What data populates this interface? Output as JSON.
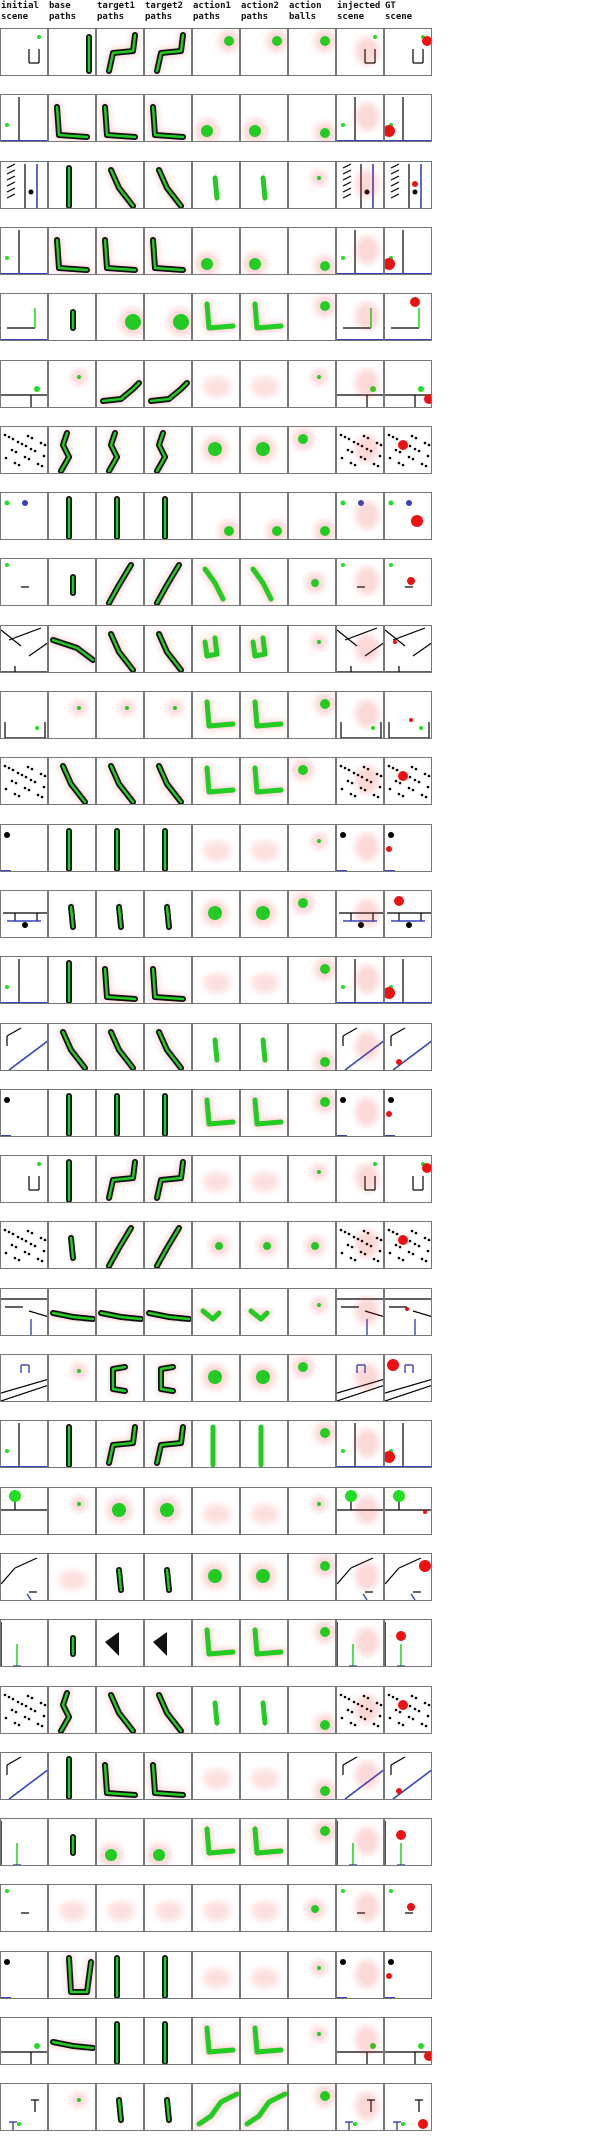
{
  "figure": {
    "columns": [
      {
        "id": "initial_scene",
        "line1": "initial",
        "line2": "scene"
      },
      {
        "id": "base_paths",
        "line1": "base",
        "line2": "paths"
      },
      {
        "id": "target1_paths",
        "line1": "target1",
        "line2": "paths"
      },
      {
        "id": "target2_paths",
        "line1": "target2",
        "line2": "paths"
      },
      {
        "id": "action1_paths",
        "line1": "action1",
        "line2": "paths"
      },
      {
        "id": "action2_paths",
        "line1": "action2",
        "line2": "paths"
      },
      {
        "id": "action_balls",
        "line1": "action",
        "line2": "balls"
      },
      {
        "id": "injected_scene",
        "line1": "injected",
        "line2": "scene"
      },
      {
        "id": "gt_scene",
        "line1": "GT",
        "line2": "scene"
      }
    ],
    "row_count": 32,
    "colors": {
      "path_green": "#22cc22",
      "path_dark": "#111111",
      "heat_red": "#ee3333",
      "wall_blue": "#3344bb",
      "ball_red": "#ee1111",
      "ball_green": "#22dd22",
      "static_black": "#000000",
      "panel_border": "#777777"
    },
    "rows": [
      {
        "scene": "cup-right",
        "base": "vbar",
        "t1": "zig",
        "t2": "zig",
        "a1": "ball-tr",
        "ab": "ball-tr"
      },
      {
        "scene": "wall-left",
        "base": "L-low",
        "t1": "L-low",
        "t2": "L-low",
        "a1": "blob-low",
        "ab": "ball-low"
      },
      {
        "scene": "ramp-stairs",
        "base": "vbar-dark",
        "t1": "diag-down",
        "t2": "diag-down",
        "a1": "short-v",
        "ab": "dot"
      },
      {
        "scene": "wall-left",
        "base": "L-low",
        "t1": "L-low",
        "t2": "L-low",
        "a1": "blob-low",
        "ab": "ball-low"
      },
      {
        "scene": "corner-L",
        "base": "thin-v",
        "t1": "blob-right",
        "t2": "blob-right",
        "a1": "L-shape",
        "ab": "ball-tr"
      },
      {
        "scene": "shelf-ball",
        "base": "dot",
        "t1": "curve-right",
        "t2": "curve-right",
        "a1": "faint",
        "ab": "dot"
      },
      {
        "scene": "dots",
        "base": "wiggle",
        "t1": "wiggle",
        "t2": "wiggle",
        "a1": "blob-mid",
        "ab": "ball-tl"
      },
      {
        "scene": "two-balls",
        "base": "vbar-dark",
        "t1": "vbar-dark",
        "t2": "vbar-dark",
        "a1": "ball-low",
        "ab": "ball-low"
      },
      {
        "scene": "small-bar",
        "base": "thin-v",
        "t1": "diag-up",
        "t2": "diag-up",
        "a1": "curve-down",
        "ab": "ball-mid"
      },
      {
        "scene": "ramps",
        "base": "diag-long",
        "t1": "diag-down",
        "t2": "diag-down",
        "a1": "hook",
        "ab": "dot"
      },
      {
        "scene": "cup-wide",
        "base": "dot",
        "t1": "dot",
        "t2": "dot",
        "a1": "L-shape",
        "ab": "ball-tr"
      },
      {
        "scene": "dots",
        "base": "diag-down",
        "t1": "diag-down",
        "t2": "diag-down",
        "a1": "L-shape",
        "ab": "ball-tl"
      },
      {
        "scene": "ball-left",
        "base": "vbar-dark",
        "t1": "vbar-dark",
        "t2": "vbar-dark",
        "a1": "faint",
        "ab": "dot"
      },
      {
        "scene": "cart",
        "base": "short-v",
        "t1": "short-v",
        "t2": "short-v",
        "a1": "blob-mid",
        "ab": "ball-tl"
      },
      {
        "scene": "wall-left",
        "base": "vbar-dark",
        "t1": "L-low",
        "t2": "L-low",
        "a1": "faint",
        "ab": "ball-tr"
      },
      {
        "scene": "ramp-blue",
        "base": "diag-down",
        "t1": "diag-down",
        "t2": "diag-down",
        "a1": "short-v",
        "ab": "ball-low"
      },
      {
        "scene": "ball-left",
        "base": "vbar-dark",
        "t1": "vbar-dark",
        "t2": "vbar-dark",
        "a1": "L-shape",
        "ab": "ball-tr"
      },
      {
        "scene": "cup-right",
        "base": "vbar-dark",
        "t1": "zig",
        "t2": "zig",
        "a1": "faint",
        "ab": "dot"
      },
      {
        "scene": "dots",
        "base": "short-v",
        "t1": "diag-up",
        "t2": "diag-up",
        "a1": "ball-mid",
        "ab": "ball-mid"
      },
      {
        "scene": "shelf-bar",
        "base": "flat",
        "t1": "flat",
        "t2": "flat",
        "a1": "flat-short",
        "ab": "dot"
      },
      {
        "scene": "arch-ramp",
        "base": "dot",
        "t1": "C-shape",
        "t2": "C-shape",
        "a1": "blob-mid",
        "ab": "ball-tl"
      },
      {
        "scene": "wall-left",
        "base": "vbar-dark",
        "t1": "zig",
        "t2": "zig",
        "a1": "vbar-dark",
        "ab": "ball-tr"
      },
      {
        "scene": "tree",
        "base": "dot",
        "t1": "blob-mid",
        "t2": "blob-mid",
        "a1": "faint",
        "ab": "dot"
      },
      {
        "scene": "funnel",
        "base": "faint",
        "t1": "short-v",
        "t2": "short-v",
        "a1": "blob-mid",
        "ab": "ball-tr"
      },
      {
        "scene": "pole",
        "base": "thin-v",
        "t1": "triangle",
        "t2": "triangle",
        "a1": "L-shape",
        "ab": "ball-tr"
      },
      {
        "scene": "dots",
        "base": "wiggle",
        "t1": "diag-down",
        "t2": "diag-down",
        "a1": "short-v",
        "ab": "ball-low"
      },
      {
        "scene": "ramp-blue",
        "base": "vbar-dark",
        "t1": "L-low",
        "t2": "L-low",
        "a1": "faint",
        "ab": "ball-low"
      },
      {
        "scene": "pole",
        "base": "thin-v",
        "t1": "blob-low",
        "t2": "blob-low",
        "a1": "L-shape",
        "ab": "ball-tr"
      },
      {
        "scene": "small-bar",
        "base": "faint",
        "t1": "faint",
        "t2": "faint",
        "a1": "faint",
        "ab": "ball-mid"
      },
      {
        "scene": "ball-left",
        "base": "J-hook",
        "t1": "vbar-dark",
        "t2": "vbar-dark",
        "a1": "faint",
        "ab": "dot"
      },
      {
        "scene": "shelf-ball",
        "base": "flat",
        "t1": "vbar-dark",
        "t2": "vbar-dark",
        "a1": "L-shape",
        "ab": "dot"
      },
      {
        "scene": "cup-bottom",
        "base": "dot",
        "t1": "short-v",
        "t2": "short-v",
        "a1": "S-shape",
        "ab": "ball-tr"
      }
    ]
  }
}
